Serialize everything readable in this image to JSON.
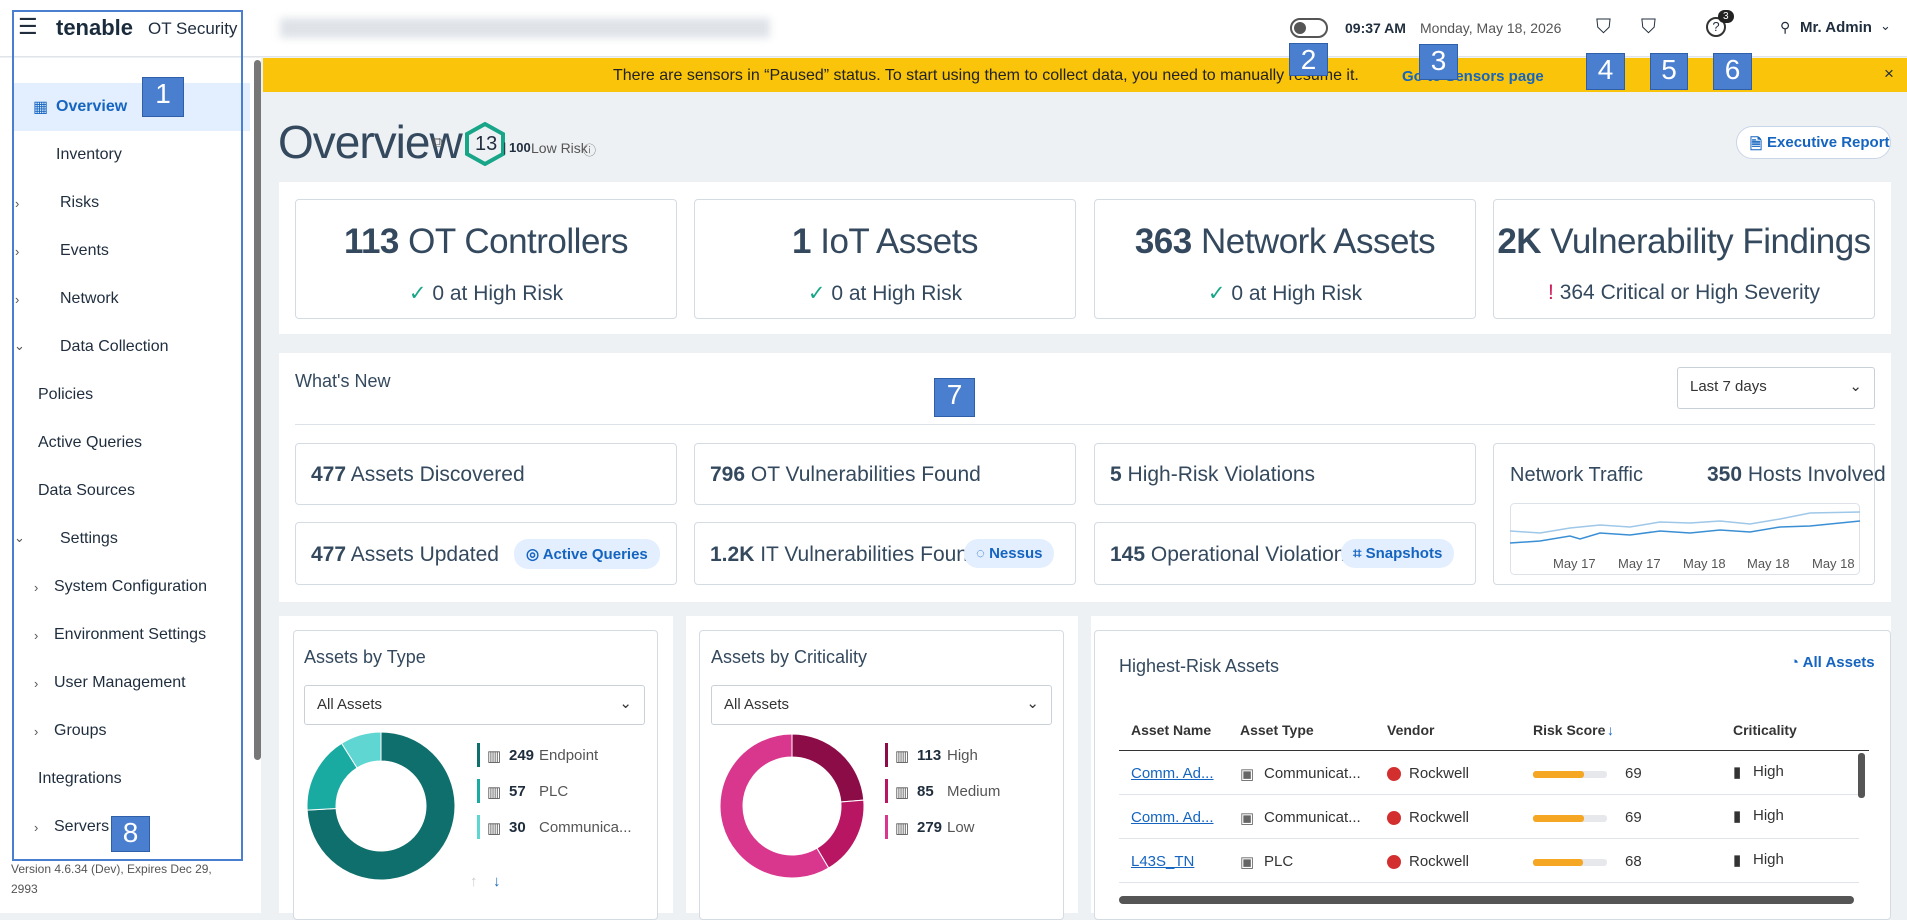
{
  "header": {
    "brand": "tenable",
    "product": "OT Security",
    "time": "09:37 AM",
    "date": "Monday, May 18, 2026",
    "help_badge": "3",
    "user": "Mr. Admin"
  },
  "banner": {
    "message": "There are sensors in “Paused” status. To start using them to collect data, you need to manually resume it.",
    "link": "Go to Sensors page"
  },
  "sidebar": {
    "items": [
      "Overview",
      "Inventory",
      "Risks",
      "Events",
      "Network",
      "Data Collection",
      "Policies",
      "Active Queries",
      "Data Sources",
      "Settings",
      "System Configuration",
      "Environment Settings",
      "User Management",
      "Groups",
      "Integrations",
      "Servers"
    ],
    "version": "Version 4.6.34 (Dev), Expires Dec 29,",
    "version_year": "2993"
  },
  "page": {
    "title": "Overview",
    "risk_score": 13,
    "risk_max": 100,
    "risk_level": "Low Risk",
    "report_button": "Executive Report"
  },
  "summary_cards": [
    {
      "count": "113",
      "label": "OT Controllers",
      "status": "0 at High Risk"
    },
    {
      "count": "1",
      "label": "IoT Assets",
      "status": "0 at High Risk"
    },
    {
      "count": "363",
      "label": "Network Assets",
      "status": "0 at High Risk"
    },
    {
      "count": "2K",
      "label": "Vulnerability Findings",
      "status": "364 Critical or High Severity"
    }
  ],
  "whats_new": {
    "title": "What's New",
    "period": "Last 7 days",
    "metrics": [
      {
        "count": "477",
        "label": "Assets Discovered"
      },
      {
        "count": "796",
        "label": "OT Vulnerabilities Found"
      },
      {
        "count": "5",
        "label": "High-Risk Violations"
      },
      {
        "count": "477",
        "label": "Assets Updated",
        "action": "Active Queries"
      },
      {
        "count": "1.2K",
        "label": "IT Vulnerabilities Found",
        "action": "Nessus"
      },
      {
        "count": "145",
        "label": "Operational Violations",
        "action": "Snapshots"
      }
    ],
    "traffic": {
      "title": "Network Traffic",
      "count": "350",
      "label": "Hosts Involved",
      "x_labels": [
        "May 17",
        "May 17",
        "May 18",
        "May 18",
        "May 18"
      ]
    }
  },
  "assets_by_type": {
    "title": "Assets by Type",
    "filter": "All Assets",
    "items": [
      {
        "value": 249,
        "label": "Endpoint",
        "color": "#0f6f6c"
      },
      {
        "value": 57,
        "label": "PLC",
        "color": "#19aaa2"
      },
      {
        "value": 30,
        "label": "Communica...",
        "color": "#5fd6d2"
      }
    ]
  },
  "assets_by_criticality": {
    "title": "Assets by Criticality",
    "filter": "All Assets",
    "items": [
      {
        "value": 113,
        "label": "High",
        "color": "#8c0c48"
      },
      {
        "value": 85,
        "label": "Medium",
        "color": "#b81563"
      },
      {
        "value": 279,
        "label": "Low",
        "color": "#d9368e"
      }
    ]
  },
  "highest_risk": {
    "title": "Highest-Risk Assets",
    "link": "All Assets",
    "columns": [
      "Asset Name",
      "Asset Type",
      "Vendor",
      "Risk Score",
      "Criticality"
    ],
    "rows": [
      [
        "Comm. Ad...",
        "Communicat...",
        "Rockwell",
        69,
        "High"
      ],
      [
        "Comm. Ad...",
        "Communicat...",
        "Rockwell",
        69,
        "High"
      ],
      [
        "L43S_TN",
        "PLC",
        "Rockwell",
        68,
        "High"
      ]
    ]
  },
  "annotations": [
    "1",
    "2",
    "3",
    "4",
    "5",
    "6",
    "7",
    "8"
  ]
}
